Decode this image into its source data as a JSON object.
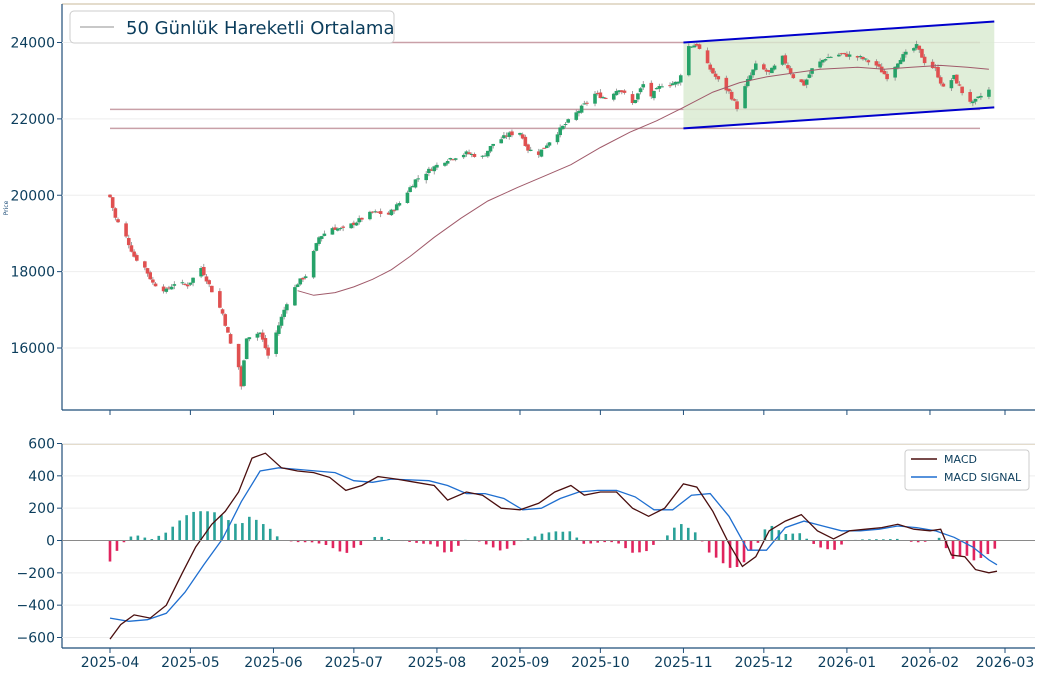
{
  "chart_data": [
    {
      "type": "candlestick",
      "ylabel": "Price",
      "ylim": [
        14500,
        25000
      ],
      "y_ticks": [
        "16000",
        "18000",
        "20000",
        "22000",
        "24000"
      ],
      "legend": {
        "label": "50 Günlük Hareketli Ortalama",
        "position": "top-left"
      },
      "colors": {
        "up": "#26a269",
        "down": "#e05050",
        "ma": "#a05a6a",
        "channel": "#0000cc",
        "channel_fill": "#d8ead0",
        "hline": "#c9a0a8",
        "axis": "#1f4e79"
      },
      "horizontal_lines": [
        24000,
        22250,
        21750
      ],
      "channel": {
        "start": "2025-11-01",
        "end": "2026-02-25",
        "upper": [
          24000,
          24550
        ],
        "lower": [
          21750,
          22300
        ]
      },
      "ohlc_anchors": [
        [
          "2025-04-01",
          19950
        ],
        [
          "2025-04-03",
          19400
        ],
        [
          "2025-04-07",
          18900
        ],
        [
          "2025-04-10",
          18400
        ],
        [
          "2025-04-14",
          18100
        ],
        [
          "2025-04-17",
          17700
        ],
        [
          "2025-04-22",
          17500
        ],
        [
          "2025-04-25",
          17700
        ],
        [
          "2025-04-30",
          17650
        ],
        [
          "2025-05-05",
          18100
        ],
        [
          "2025-05-09",
          17500
        ],
        [
          "2025-05-13",
          16900
        ],
        [
          "2025-05-16",
          16100
        ],
        [
          "2025-05-19",
          15500
        ],
        [
          "2025-05-20",
          15000
        ],
        [
          "2025-05-22",
          16300
        ],
        [
          "2025-05-27",
          16400
        ],
        [
          "2025-05-30",
          15800
        ],
        [
          "2025-06-03",
          16600
        ],
        [
          "2025-06-06",
          17200
        ],
        [
          "2025-06-10",
          17700
        ],
        [
          "2025-06-13",
          17900
        ],
        [
          "2025-06-18",
          18900
        ],
        [
          "2025-06-23",
          19150
        ],
        [
          "2025-06-27",
          19100
        ],
        [
          "2025-07-03",
          19350
        ],
        [
          "2025-07-08",
          19550
        ],
        [
          "2025-07-14",
          19500
        ],
        [
          "2025-07-18",
          19800
        ],
        [
          "2025-07-24",
          20400
        ],
        [
          "2025-07-30",
          20700
        ],
        [
          "2025-08-05",
          20950
        ],
        [
          "2025-08-12",
          21100
        ],
        [
          "2025-08-18",
          21000
        ],
        [
          "2025-08-22",
          21350
        ],
        [
          "2025-08-28",
          21600
        ],
        [
          "2025-09-01",
          21650
        ],
        [
          "2025-09-04",
          21200
        ],
        [
          "2025-09-08",
          21100
        ],
        [
          "2025-09-15",
          21650
        ],
        [
          "2025-09-22",
          22150
        ],
        [
          "2025-09-29",
          22650
        ],
        [
          "2025-10-03",
          22550
        ],
        [
          "2025-10-08",
          22800
        ],
        [
          "2025-10-13",
          22400
        ],
        [
          "2025-10-17",
          22900
        ],
        [
          "2025-10-20",
          22600
        ],
        [
          "2025-10-24",
          22900
        ],
        [
          "2025-10-30",
          22950
        ],
        [
          "2025-11-03",
          23900
        ],
        [
          "2025-11-06",
          23950
        ],
        [
          "2025-11-10",
          23400
        ],
        [
          "2025-11-14",
          23000
        ],
        [
          "2025-11-18",
          22700
        ],
        [
          "2025-11-21",
          22300
        ],
        [
          "2025-11-25",
          23000
        ],
        [
          "2025-11-28",
          23400
        ],
        [
          "2025-12-03",
          23200
        ],
        [
          "2025-12-08",
          23600
        ],
        [
          "2025-12-12",
          23100
        ],
        [
          "2025-12-16",
          22900
        ],
        [
          "2025-12-19",
          23300
        ],
        [
          "2025-12-24",
          23600
        ],
        [
          "2025-12-30",
          23700
        ],
        [
          "2026-01-06",
          23600
        ],
        [
          "2026-01-12",
          23400
        ],
        [
          "2026-01-16",
          23100
        ],
        [
          "2026-01-21",
          23600
        ],
        [
          "2026-01-27",
          23900
        ],
        [
          "2026-01-30",
          23500
        ],
        [
          "2026-02-03",
          23300
        ],
        [
          "2026-02-06",
          22800
        ],
        [
          "2026-02-10",
          23100
        ],
        [
          "2026-02-13",
          22700
        ],
        [
          "2026-02-17",
          22400
        ],
        [
          "2026-02-20",
          22600
        ],
        [
          "2026-02-23",
          22750
        ]
      ],
      "moving_average_50": [
        [
          "2025-06-10",
          17500
        ],
        [
          "2025-06-16",
          17380
        ],
        [
          "2025-06-24",
          17450
        ],
        [
          "2025-07-01",
          17600
        ],
        [
          "2025-07-08",
          17800
        ],
        [
          "2025-07-15",
          18050
        ],
        [
          "2025-07-22",
          18400
        ],
        [
          "2025-07-31",
          18900
        ],
        [
          "2025-08-10",
          19400
        ],
        [
          "2025-08-20",
          19850
        ],
        [
          "2025-08-31",
          20200
        ],
        [
          "2025-09-10",
          20500
        ],
        [
          "2025-09-20",
          20800
        ],
        [
          "2025-10-01",
          21250
        ],
        [
          "2025-10-12",
          21650
        ],
        [
          "2025-10-22",
          21950
        ],
        [
          "2025-11-01",
          22300
        ],
        [
          "2025-11-12",
          22700
        ],
        [
          "2025-11-22",
          22950
        ],
        [
          "2025-12-02",
          23100
        ],
        [
          "2025-12-12",
          23200
        ],
        [
          "2025-12-22",
          23300
        ],
        [
          "2026-01-05",
          23350
        ],
        [
          "2026-01-15",
          23300
        ],
        [
          "2026-01-25",
          23350
        ],
        [
          "2026-02-05",
          23400
        ],
        [
          "2026-02-15",
          23350
        ],
        [
          "2026-02-23",
          23300
        ]
      ]
    },
    {
      "type": "line+bar",
      "ylim": [
        -650,
        650
      ],
      "y_ticks": [
        "−600",
        "−400",
        "−200",
        "0",
        "200",
        "400",
        "600"
      ],
      "x_ticks": [
        "2025-04",
        "2025-05",
        "2025-06",
        "2025-07",
        "2025-08",
        "2025-09",
        "2025-10",
        "2025-11",
        "2025-12",
        "2026-01",
        "2026-02",
        "2026-03"
      ],
      "legend_position": "upper right",
      "colors": {
        "macd": "#4a0e0e",
        "signal": "#1f6fd0",
        "hist_pos": "#2aa198",
        "hist_neg": "#e0245e"
      },
      "series": [
        {
          "name": "MACD",
          "points": [
            [
              "2025-04-01",
              -610
            ],
            [
              "2025-04-05",
              -520
            ],
            [
              "2025-04-10",
              -460
            ],
            [
              "2025-04-16",
              -480
            ],
            [
              "2025-04-22",
              -400
            ],
            [
              "2025-04-28",
              -200
            ],
            [
              "2025-05-03",
              -40
            ],
            [
              "2025-05-09",
              100
            ],
            [
              "2025-05-14",
              180
            ],
            [
              "2025-05-19",
              300
            ],
            [
              "2025-05-24",
              510
            ],
            [
              "2025-05-29",
              540
            ],
            [
              "2025-06-04",
              450
            ],
            [
              "2025-06-10",
              430
            ],
            [
              "2025-06-16",
              420
            ],
            [
              "2025-06-22",
              390
            ],
            [
              "2025-06-28",
              310
            ],
            [
              "2025-07-04",
              340
            ],
            [
              "2025-07-10",
              395
            ],
            [
              "2025-07-17",
              380
            ],
            [
              "2025-07-24",
              360
            ],
            [
              "2025-07-31",
              340
            ],
            [
              "2025-08-05",
              250
            ],
            [
              "2025-08-12",
              300
            ],
            [
              "2025-08-18",
              280
            ],
            [
              "2025-08-25",
              200
            ],
            [
              "2025-09-01",
              190
            ],
            [
              "2025-09-08",
              230
            ],
            [
              "2025-09-14",
              300
            ],
            [
              "2025-09-20",
              340
            ],
            [
              "2025-09-25",
              280
            ],
            [
              "2025-10-01",
              300
            ],
            [
              "2025-10-07",
              300
            ],
            [
              "2025-10-13",
              200
            ],
            [
              "2025-10-19",
              150
            ],
            [
              "2025-10-25",
              200
            ],
            [
              "2025-11-01",
              350
            ],
            [
              "2025-11-06",
              330
            ],
            [
              "2025-11-12",
              180
            ],
            [
              "2025-11-18",
              -20
            ],
            [
              "2025-11-23",
              -160
            ],
            [
              "2025-11-28",
              -100
            ],
            [
              "2025-12-03",
              60
            ],
            [
              "2025-12-09",
              120
            ],
            [
              "2025-12-15",
              160
            ],
            [
              "2025-12-21",
              60
            ],
            [
              "2025-12-27",
              10
            ],
            [
              "2026-01-02",
              60
            ],
            [
              "2026-01-08",
              70
            ],
            [
              "2026-01-14",
              80
            ],
            [
              "2026-01-20",
              100
            ],
            [
              "2026-01-26",
              70
            ],
            [
              "2026-02-01",
              60
            ],
            [
              "2026-02-05",
              70
            ],
            [
              "2026-02-09",
              -90
            ],
            [
              "2026-02-14",
              -100
            ],
            [
              "2026-02-18",
              -180
            ],
            [
              "2026-02-23",
              -200
            ],
            [
              "2026-02-26",
              -190
            ]
          ]
        },
        {
          "name": "MACD SIGNAL",
          "points": [
            [
              "2025-04-01",
              -480
            ],
            [
              "2025-04-08",
              -500
            ],
            [
              "2025-04-15",
              -490
            ],
            [
              "2025-04-22",
              -450
            ],
            [
              "2025-04-29",
              -320
            ],
            [
              "2025-05-06",
              -150
            ],
            [
              "2025-05-13",
              10
            ],
            [
              "2025-05-20",
              240
            ],
            [
              "2025-05-27",
              430
            ],
            [
              "2025-06-03",
              450
            ],
            [
              "2025-06-10",
              440
            ],
            [
              "2025-06-17",
              430
            ],
            [
              "2025-06-24",
              420
            ],
            [
              "2025-07-01",
              370
            ],
            [
              "2025-07-08",
              360
            ],
            [
              "2025-07-15",
              380
            ],
            [
              "2025-07-22",
              375
            ],
            [
              "2025-07-29",
              370
            ],
            [
              "2025-08-05",
              340
            ],
            [
              "2025-08-12",
              290
            ],
            [
              "2025-08-19",
              290
            ],
            [
              "2025-08-26",
              260
            ],
            [
              "2025-09-02",
              190
            ],
            [
              "2025-09-09",
              200
            ],
            [
              "2025-09-16",
              260
            ],
            [
              "2025-09-23",
              300
            ],
            [
              "2025-09-30",
              310
            ],
            [
              "2025-10-07",
              310
            ],
            [
              "2025-10-14",
              270
            ],
            [
              "2025-10-21",
              190
            ],
            [
              "2025-10-28",
              190
            ],
            [
              "2025-11-04",
              280
            ],
            [
              "2025-11-11",
              290
            ],
            [
              "2025-11-18",
              150
            ],
            [
              "2025-11-25",
              -60
            ],
            [
              "2025-12-02",
              -60
            ],
            [
              "2025-12-09",
              80
            ],
            [
              "2025-12-16",
              120
            ],
            [
              "2025-12-23",
              90
            ],
            [
              "2025-12-30",
              60
            ],
            [
              "2026-01-06",
              60
            ],
            [
              "2026-01-13",
              70
            ],
            [
              "2026-01-20",
              90
            ],
            [
              "2026-01-27",
              80
            ],
            [
              "2026-02-03",
              60
            ],
            [
              "2026-02-10",
              20
            ],
            [
              "2026-02-17",
              -40
            ],
            [
              "2026-02-23",
              -120
            ],
            [
              "2026-02-26",
              -150
            ]
          ]
        }
      ]
    }
  ]
}
